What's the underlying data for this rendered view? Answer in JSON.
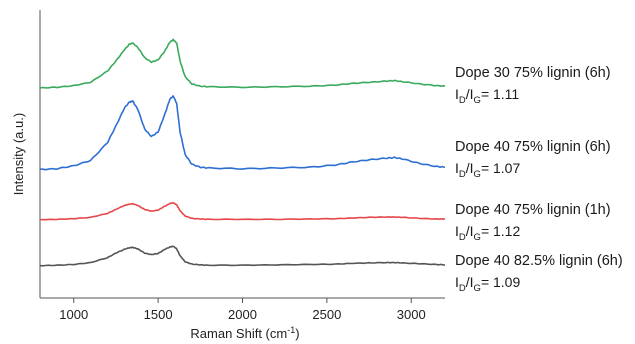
{
  "chart_data": {
    "type": "line",
    "xlabel": "Raman Shift (cm",
    "xlabel_sup": "-1",
    "xlabel_close": ")",
    "ylabel": "Intensity (a.u.)",
    "xlim": [
      800,
      3200
    ],
    "xticks": [
      "1000",
      "1500",
      "2000",
      "2500",
      "3000"
    ],
    "y_ticks_shown": false,
    "stacked_offset_spectra": true,
    "ratio_label": {
      "I": "I",
      "D": "D",
      "slash": "/",
      "G": "G",
      "eq": "= "
    },
    "series": [
      {
        "name": "Dope 30 75% lignin (6h)",
        "ratio": "1.11",
        "color": "#3aaa5c",
        "x": [
          800,
          900,
          1000,
          1100,
          1200,
          1250,
          1300,
          1330,
          1350,
          1380,
          1420,
          1460,
          1500,
          1540,
          1570,
          1590,
          1610,
          1630,
          1660,
          1700,
          1750,
          1800,
          2000,
          2200,
          2400,
          2550,
          2650,
          2750,
          2850,
          2900,
          2950,
          3050,
          3150,
          3200
        ],
        "y": [
          0.02,
          0.03,
          0.06,
          0.12,
          0.32,
          0.5,
          0.7,
          0.8,
          0.82,
          0.74,
          0.56,
          0.48,
          0.52,
          0.68,
          0.84,
          0.88,
          0.82,
          0.5,
          0.22,
          0.09,
          0.05,
          0.04,
          0.03,
          0.04,
          0.05,
          0.07,
          0.1,
          0.12,
          0.14,
          0.15,
          0.13,
          0.09,
          0.06,
          0.05
        ]
      },
      {
        "name": "Dope 40 75% lignin (6h)",
        "ratio": "1.07",
        "color": "#2e6fd4",
        "x": [
          800,
          900,
          1000,
          1100,
          1200,
          1250,
          1300,
          1330,
          1350,
          1380,
          1420,
          1460,
          1500,
          1540,
          1570,
          1590,
          1610,
          1630,
          1660,
          1700,
          1750,
          1800,
          2000,
          2200,
          2400,
          2550,
          2650,
          2750,
          2850,
          2900,
          2950,
          3050,
          3150,
          3200
        ],
        "y": [
          0.02,
          0.03,
          0.07,
          0.14,
          0.38,
          0.6,
          0.84,
          0.92,
          0.93,
          0.82,
          0.56,
          0.46,
          0.52,
          0.76,
          0.96,
          1.0,
          0.9,
          0.52,
          0.22,
          0.09,
          0.05,
          0.04,
          0.03,
          0.04,
          0.05,
          0.08,
          0.12,
          0.15,
          0.17,
          0.18,
          0.16,
          0.1,
          0.06,
          0.05
        ]
      },
      {
        "name": "Dope 40 75% lignin (1h)",
        "ratio": "1.12",
        "color": "#e5484a",
        "x": [
          800,
          900,
          1000,
          1100,
          1200,
          1250,
          1300,
          1330,
          1350,
          1380,
          1420,
          1460,
          1500,
          1540,
          1570,
          1590,
          1610,
          1630,
          1660,
          1700,
          1750,
          1800,
          2000,
          2200,
          2400,
          2550,
          2650,
          2750,
          2850,
          2900,
          2950,
          3050,
          3150,
          3200
        ],
        "y": [
          0.01,
          0.02,
          0.04,
          0.08,
          0.2,
          0.32,
          0.44,
          0.48,
          0.49,
          0.44,
          0.32,
          0.27,
          0.3,
          0.42,
          0.5,
          0.52,
          0.46,
          0.28,
          0.12,
          0.05,
          0.03,
          0.02,
          0.02,
          0.02,
          0.03,
          0.04,
          0.06,
          0.08,
          0.09,
          0.09,
          0.08,
          0.05,
          0.03,
          0.03
        ]
      },
      {
        "name": "Dope 40 82.5% lignin (6h)",
        "ratio": "1.09",
        "color": "#555555",
        "x": [
          800,
          900,
          1000,
          1100,
          1200,
          1250,
          1300,
          1330,
          1350,
          1380,
          1420,
          1460,
          1500,
          1540,
          1570,
          1590,
          1610,
          1630,
          1660,
          1700,
          1750,
          1800,
          2000,
          2200,
          2400,
          2550,
          2650,
          2750,
          2850,
          2900,
          2950,
          3050,
          3150,
          3200
        ],
        "y": [
          0.01,
          0.02,
          0.04,
          0.09,
          0.22,
          0.34,
          0.44,
          0.48,
          0.49,
          0.45,
          0.34,
          0.3,
          0.33,
          0.44,
          0.5,
          0.52,
          0.45,
          0.27,
          0.11,
          0.05,
          0.03,
          0.02,
          0.02,
          0.03,
          0.04,
          0.05,
          0.07,
          0.08,
          0.09,
          0.09,
          0.08,
          0.06,
          0.04,
          0.03
        ]
      }
    ]
  }
}
